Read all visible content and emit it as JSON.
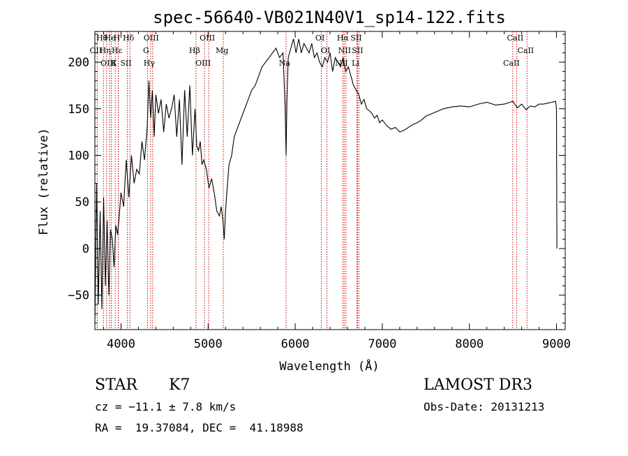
{
  "chart_data": {
    "type": "line",
    "title": "spec-56640-VB021N40V1_sp14-122.fits",
    "xlabel": "Wavelength (Å)",
    "ylabel": "Flux (relative)",
    "xlim": [
      3700,
      9100
    ],
    "ylim": [
      -87,
      233
    ],
    "xticks": [
      4000,
      5000,
      6000,
      7000,
      8000,
      9000
    ],
    "yticks": [
      -50,
      0,
      50,
      100,
      150,
      200
    ],
    "series": [
      {
        "name": "flux",
        "x": [
          3700,
          3720,
          3740,
          3760,
          3780,
          3800,
          3820,
          3840,
          3860,
          3880,
          3900,
          3920,
          3940,
          3960,
          3980,
          4000,
          4030,
          4060,
          4090,
          4120,
          4150,
          4180,
          4210,
          4240,
          4270,
          4300,
          4320,
          4340,
          4360,
          4380,
          4400,
          4430,
          4460,
          4490,
          4520,
          4550,
          4580,
          4610,
          4640,
          4670,
          4700,
          4730,
          4760,
          4790,
          4820,
          4850,
          4870,
          4890,
          4910,
          4930,
          4950,
          4980,
          5010,
          5040,
          5070,
          5100,
          5130,
          5150,
          5170,
          5185,
          5200,
          5215,
          5240,
          5270,
          5300,
          5340,
          5380,
          5420,
          5460,
          5500,
          5540,
          5580,
          5620,
          5660,
          5700,
          5740,
          5780,
          5820,
          5860,
          5885,
          5895,
          5905,
          5920,
          5950,
          5980,
          6010,
          6040,
          6070,
          6100,
          6130,
          6160,
          6190,
          6220,
          6250,
          6280,
          6310,
          6340,
          6370,
          6400,
          6430,
          6460,
          6490,
          6520,
          6550,
          6580,
          6610,
          6640,
          6670,
          6700,
          6730,
          6760,
          6790,
          6820,
          6850,
          6880,
          6910,
          6940,
          6970,
          7000,
          7050,
          7100,
          7150,
          7200,
          7250,
          7300,
          7350,
          7400,
          7450,
          7500,
          7600,
          7700,
          7800,
          7900,
          8000,
          8100,
          8200,
          8300,
          8400,
          8500,
          8550,
          8600,
          8650,
          8700,
          8750,
          8800,
          8850,
          8900,
          8950,
          8990,
          9000,
          9005
        ],
        "values": [
          -80,
          70,
          -60,
          40,
          -65,
          55,
          -40,
          30,
          -50,
          20,
          10,
          -20,
          25,
          15,
          35,
          60,
          45,
          95,
          55,
          100,
          70,
          85,
          80,
          115,
          95,
          130,
          180,
          140,
          170,
          120,
          165,
          145,
          160,
          125,
          155,
          140,
          150,
          165,
          120,
          160,
          90,
          170,
          120,
          175,
          100,
          150,
          110,
          105,
          115,
          90,
          95,
          85,
          65,
          75,
          60,
          40,
          35,
          45,
          30,
          10,
          40,
          60,
          90,
          100,
          120,
          130,
          140,
          150,
          160,
          170,
          175,
          185,
          195,
          200,
          205,
          210,
          215,
          205,
          210,
          150,
          100,
          160,
          205,
          215,
          225,
          210,
          225,
          210,
          220,
          215,
          210,
          220,
          205,
          210,
          200,
          195,
          205,
          200,
          210,
          190,
          205,
          200,
          195,
          205,
          190,
          195,
          185,
          175,
          170,
          165,
          155,
          160,
          150,
          148,
          145,
          140,
          143,
          135,
          138,
          132,
          128,
          130,
          125,
          127,
          130,
          133,
          135,
          138,
          142,
          146,
          150,
          152,
          153,
          152,
          155,
          157,
          154,
          155,
          158,
          151,
          155,
          149,
          153,
          152,
          155,
          155,
          156,
          157,
          158,
          150,
          0
        ]
      }
    ],
    "lines": [
      {
        "label": "Hθ",
        "lambda": 3798
      },
      {
        "label": "OII",
        "lambda": 3727
      },
      {
        "label": "OIII",
        "lambda": 3869
      },
      {
        "label": "He",
        "lambda": 3889
      },
      {
        "label": "Hη",
        "lambda": 3835
      },
      {
        "label": "K",
        "lambda": 3934
      },
      {
        "label": "H",
        "lambda": 3968
      },
      {
        "label": "Hε",
        "lambda": 3970
      },
      {
        "label": "SII",
        "lambda": 4072
      },
      {
        "label": "Hδ",
        "lambda": 4102
      },
      {
        "label": "G",
        "lambda": 4304
      },
      {
        "label": "Hγ",
        "lambda": 4340
      },
      {
        "label": "OIII",
        "lambda": 4363
      },
      {
        "label": "Hβ",
        "lambda": 4861
      },
      {
        "label": "OIII",
        "lambda": 4959
      },
      {
        "label": "OIII",
        "lambda": 5007
      },
      {
        "label": "Mg",
        "lambda": 5175
      },
      {
        "label": "Na",
        "lambda": 5894
      },
      {
        "label": "OI",
        "lambda": 6300
      },
      {
        "label": "OI",
        "lambda": 6364
      },
      {
        "label": "NII",
        "lambda": 6548
      },
      {
        "label": "Hα",
        "lambda": 6563
      },
      {
        "label": "NII",
        "lambda": 6583
      },
      {
        "label": "Li",
        "lambda": 6708
      },
      {
        "label": "SII",
        "lambda": 6716
      },
      {
        "label": "SII",
        "lambda": 6731
      },
      {
        "label": "CaII",
        "lambda": 8498
      },
      {
        "label": "CaII",
        "lambda": 8542
      },
      {
        "label": "CaII",
        "lambda": 8662
      }
    ],
    "line_color": "#cc0000"
  },
  "info": {
    "class": "STAR",
    "subclass": "K7",
    "cz": "cz = −11.1 ± 7.8 km/s",
    "radec": "RA =  19.37084, DEC =  41.18988",
    "survey": "LAMOST DR3",
    "obsdate": "Obs-Date: 20131213"
  }
}
